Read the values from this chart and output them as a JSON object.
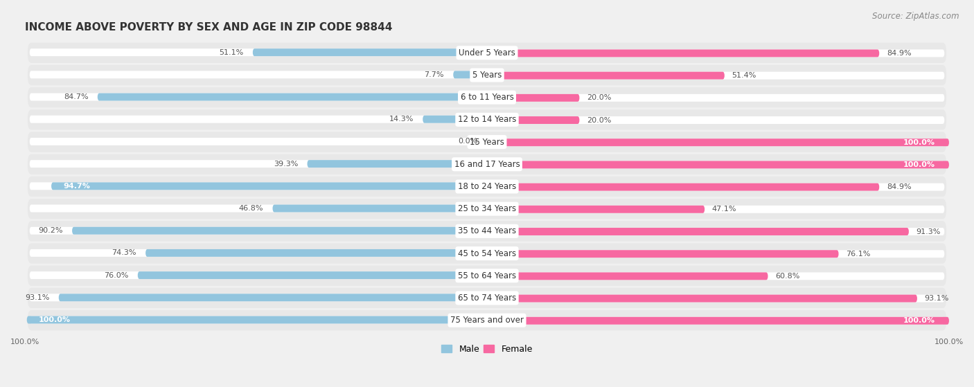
{
  "title": "INCOME ABOVE POVERTY BY SEX AND AGE IN ZIP CODE 98844",
  "source": "Source: ZipAtlas.com",
  "categories": [
    "Under 5 Years",
    "5 Years",
    "6 to 11 Years",
    "12 to 14 Years",
    "15 Years",
    "16 and 17 Years",
    "18 to 24 Years",
    "25 to 34 Years",
    "35 to 44 Years",
    "45 to 54 Years",
    "55 to 64 Years",
    "65 to 74 Years",
    "75 Years and over"
  ],
  "male_values": [
    51.1,
    7.7,
    84.7,
    14.3,
    0.0,
    39.3,
    94.7,
    46.8,
    90.2,
    74.3,
    76.0,
    93.1,
    100.0
  ],
  "female_values": [
    84.9,
    51.4,
    20.0,
    20.0,
    100.0,
    100.0,
    84.9,
    47.1,
    91.3,
    76.1,
    60.8,
    93.1,
    100.0
  ],
  "male_color": "#92c5de",
  "female_color": "#f768a1",
  "row_bg_color": "#e8e8e8",
  "bar_bg_color": "#ffffff",
  "title_fontsize": 11,
  "label_fontsize": 8.5,
  "value_fontsize": 8,
  "legend_fontsize": 9,
  "source_fontsize": 8.5
}
